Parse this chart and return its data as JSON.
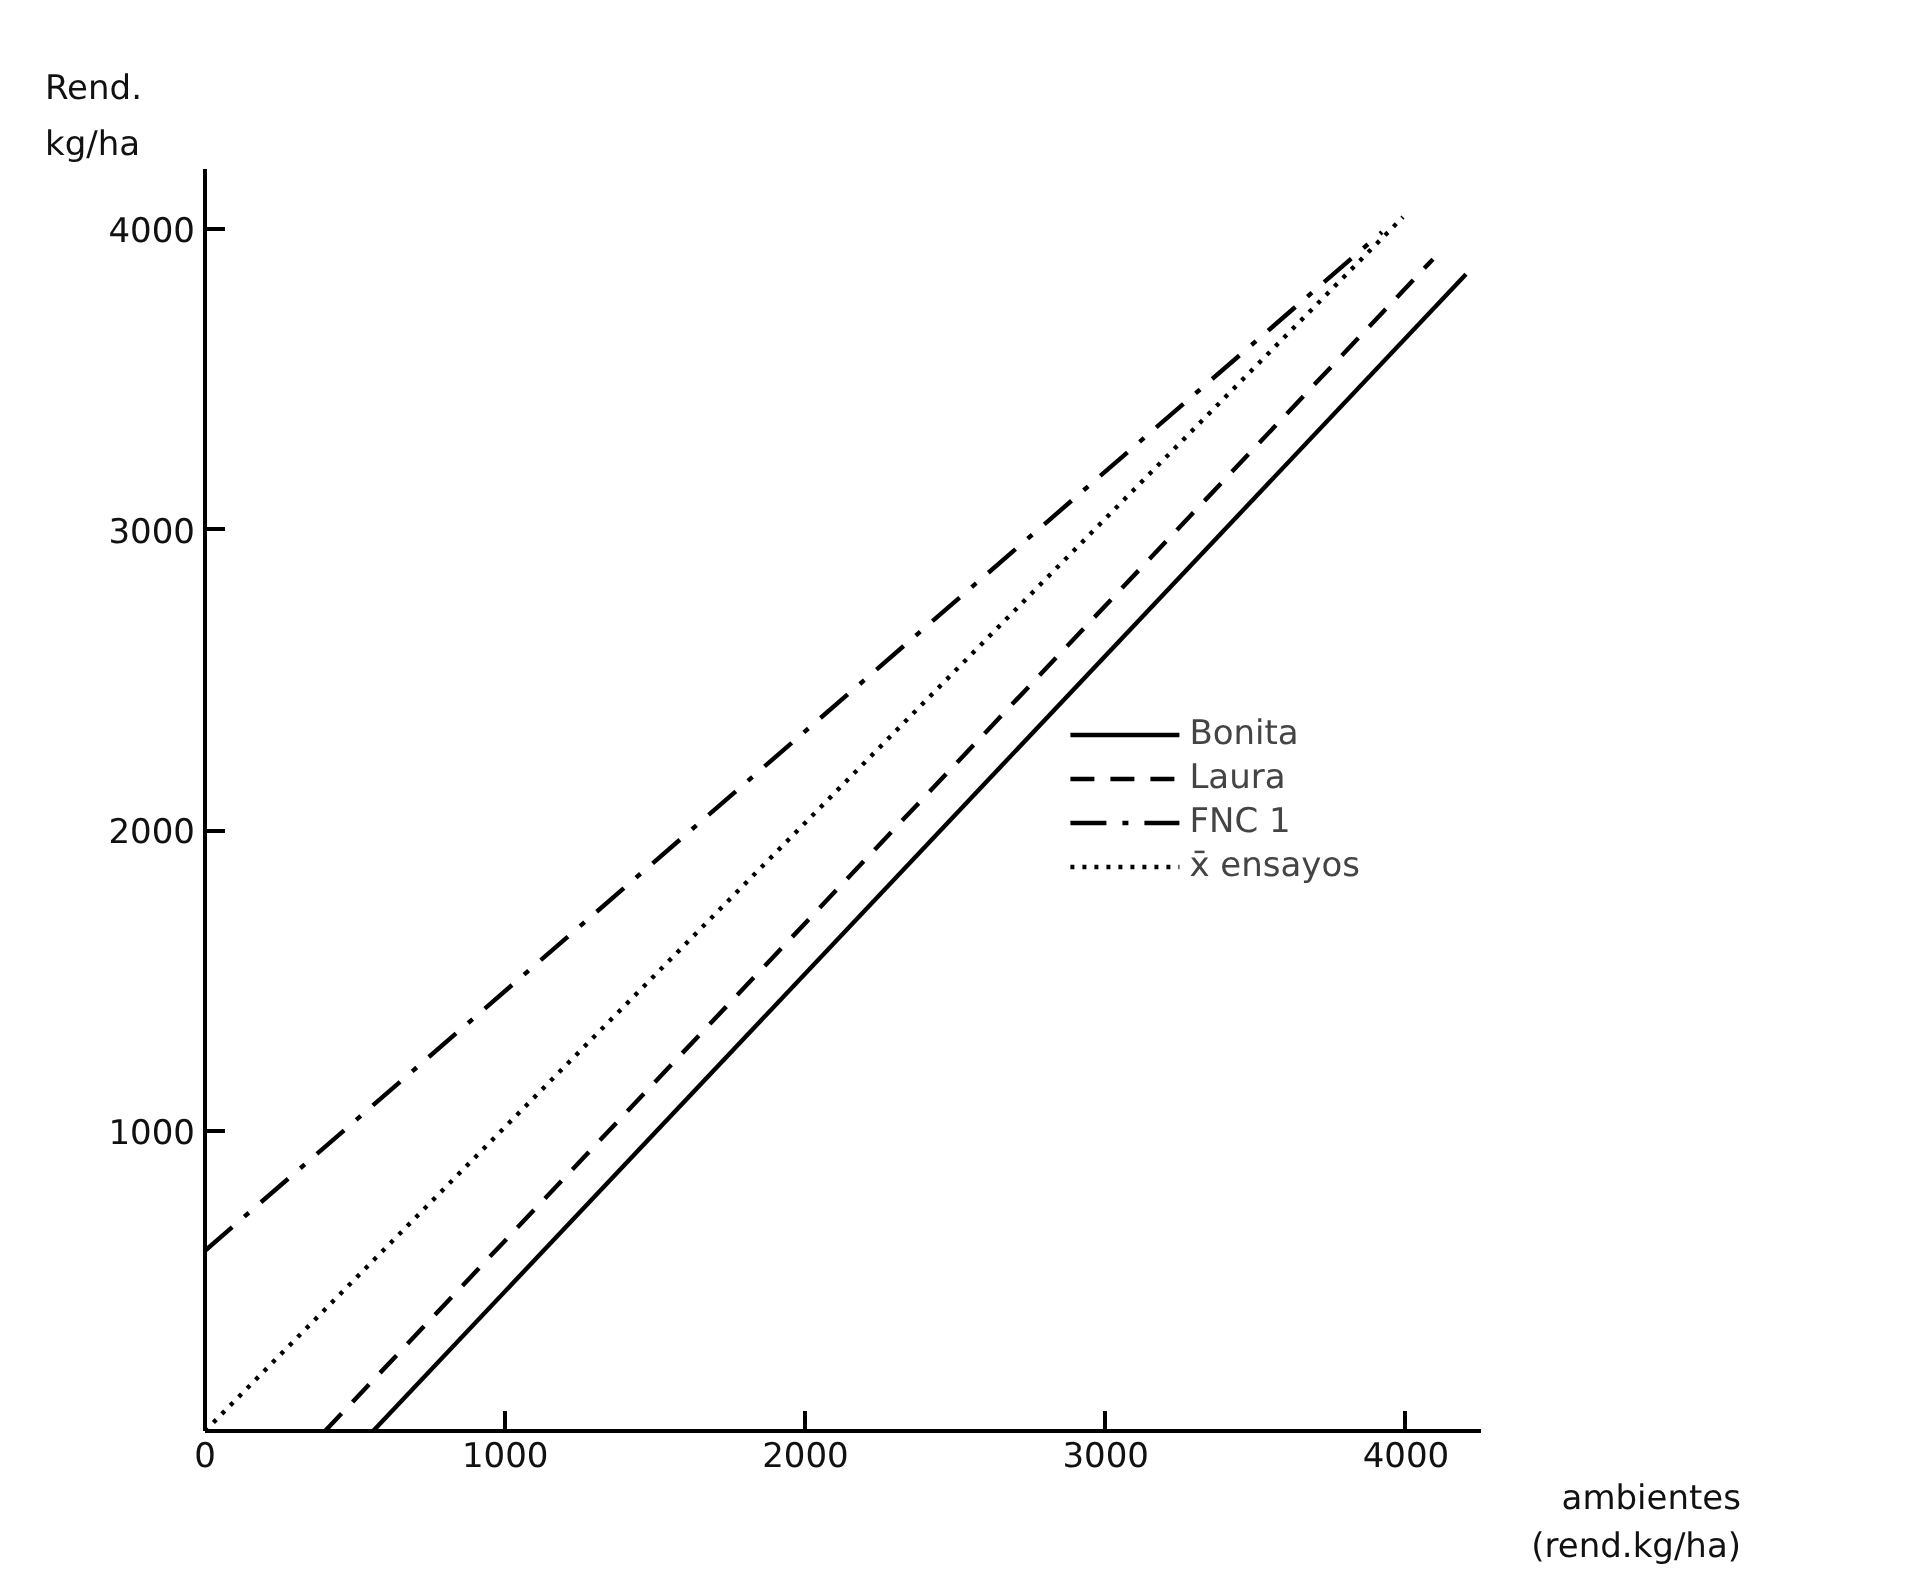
{
  "chart_data": {
    "type": "line",
    "xlabel": "ambientes\n(rend.kg/ha)",
    "ylabel": "Rend.\nkg/ha",
    "xlim": [
      0,
      4250
    ],
    "ylim": [
      0,
      4200
    ],
    "xticks": [
      0,
      1000,
      2000,
      3000,
      4000
    ],
    "yticks": [
      1000,
      2000,
      3000,
      4000
    ],
    "grid": false,
    "legend": "center right",
    "marker": "none",
    "series": [
      {
        "name": "Bonita",
        "color": "#000000",
        "line_style": "solid",
        "x": [
          560,
          4200
        ],
        "values": [
          0,
          3850
        ]
      },
      {
        "name": "Laura",
        "color": "#000000",
        "line_style": "dashed",
        "x": [
          400,
          4090
        ],
        "values": [
          0,
          3900
        ]
      },
      {
        "name": "FNC 1",
        "color": "#000000",
        "line_style": "dashdot",
        "x": [
          0,
          3920
        ],
        "values": [
          600,
          3990
        ]
      },
      {
        "name": "x̄ ensayos",
        "color": "#000000",
        "line_style": "dotted",
        "x": [
          0,
          3990
        ],
        "values": [
          0,
          4040
        ]
      }
    ]
  }
}
